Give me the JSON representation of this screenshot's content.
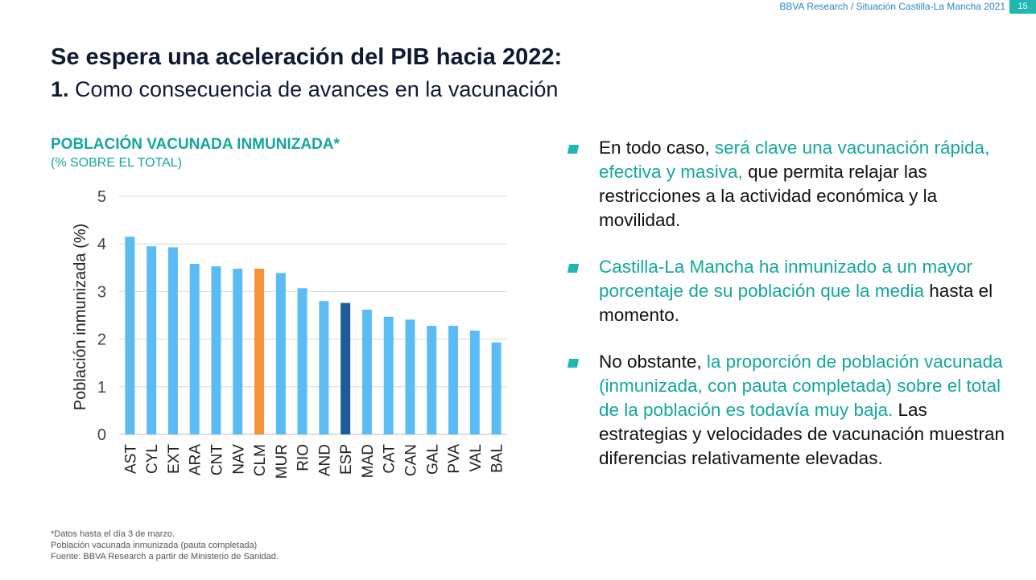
{
  "header": {
    "brand": "BBVA Research / Situación Castilla-La Mancha 2021",
    "page_number": "15"
  },
  "title": "Se espera una aceleración del PIB hacia 2022:",
  "subtitle": {
    "number": "1.",
    "text": " Como consecuencia de avances en la vacunación"
  },
  "chart_data": {
    "type": "bar",
    "title": "POBLACIÓN VACUNADA INMUNIZADA*",
    "subtitle": "(% SOBRE EL TOTAL)",
    "ylabel": "Población inmunizada (%)",
    "xlabel": "",
    "ylim": [
      0,
      5
    ],
    "yticks": [
      0,
      1,
      2,
      3,
      4,
      5
    ],
    "grid": true,
    "categories": [
      "AST",
      "CYL",
      "EXT",
      "ARA",
      "CNT",
      "NAV",
      "CLM",
      "MUR",
      "RIO",
      "AND",
      "ESP",
      "MAD",
      "CAT",
      "CAN",
      "GAL",
      "PVA",
      "VAL",
      "BAL"
    ],
    "values": [
      4.15,
      3.95,
      3.93,
      3.58,
      3.53,
      3.48,
      3.48,
      3.39,
      3.07,
      2.8,
      2.76,
      2.62,
      2.47,
      2.41,
      2.28,
      2.28,
      2.18,
      1.93
    ],
    "colors": {
      "default": "#5bbcf5",
      "highlight": {
        "CLM": "#f39239",
        "ESP": "#1e5a94"
      }
    }
  },
  "bullets": [
    {
      "parts": [
        {
          "text": "En todo caso, ",
          "highlight": false
        },
        {
          "text": "será clave una vacunación rápida, efectiva y masiva,",
          "highlight": true
        },
        {
          "text": " que permita relajar las restricciones a la actividad económica y la movilidad.",
          "highlight": false
        }
      ]
    },
    {
      "parts": [
        {
          "text": "Castilla-La Mancha ha inmunizado a un mayor porcentaje de su población que la media",
          "highlight": true
        },
        {
          "text": " hasta el momento.",
          "highlight": false
        }
      ]
    },
    {
      "parts": [
        {
          "text": "No obstante, ",
          "highlight": false
        },
        {
          "text": "la proporción de población vacunada (inmunizada, con pauta completada) sobre el total de la población es todavía muy baja.",
          "highlight": true
        },
        {
          "text": " Las estrategias y velocidades de vacunación muestran diferencias relativamente elevadas.",
          "highlight": false
        }
      ]
    }
  ],
  "footnotes": [
    "*Datos hasta el día 3 de marzo.",
    "Población vacunada inmunizada (pauta completada)",
    "Fuente: BBVA Research a partir de Ministerio de Sanidad."
  ],
  "colors": {
    "accent": "#1fb7b0",
    "highlight_text": "#14a79c",
    "brand": "#2a86c9"
  }
}
